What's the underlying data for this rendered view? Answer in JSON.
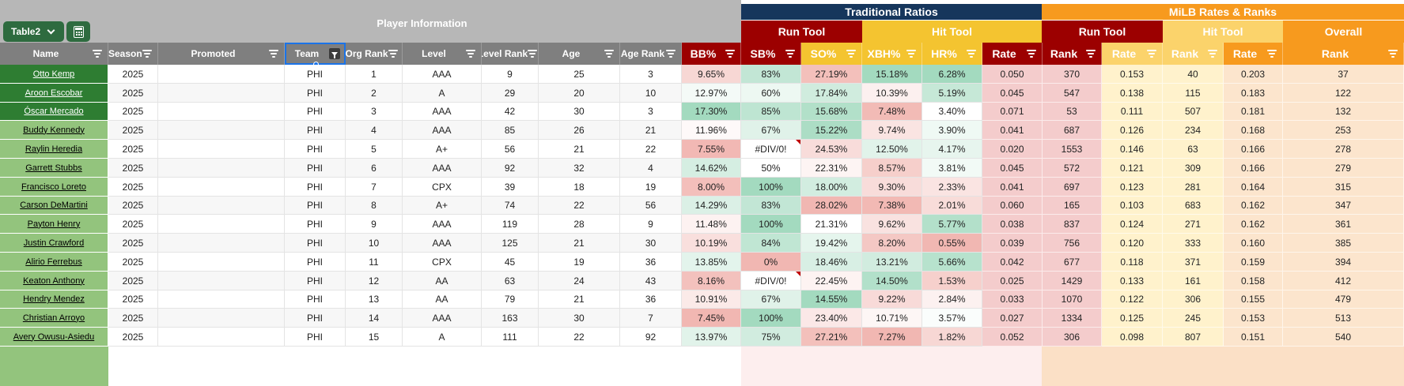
{
  "table_name": "Table2",
  "groups": {
    "player_info": "Player Information",
    "traditional": "Traditional Ratios",
    "milb": "MiLB Rates & Ranks",
    "run_tool": "Run Tool",
    "hit_tool": "Hit Tool",
    "overall": "Overall"
  },
  "colors": {
    "navy": "#16365c",
    "orange": "#f79a1e",
    "dark_red": "#9c0000",
    "gold": "#f4c430",
    "light_gold": "#fbd36b",
    "header_gray": "#7f7f7f",
    "name_dark_green": "#2e7d32",
    "name_light_green": "#93c47d"
  },
  "columns": [
    "Name",
    "Season",
    "Promoted",
    "Team",
    "Org Rank",
    "Level",
    "Level Rank",
    "Age",
    "Age Rank",
    "BB%",
    "SB%",
    "SO%",
    "XBH%",
    "HR%",
    "Rate",
    "Rank",
    "Rate",
    "Rank",
    "Rate",
    "Rank"
  ],
  "rows": [
    [
      "Otto Kemp",
      "2025",
      "",
      "PHI",
      "1",
      "AAA",
      "9",
      "25",
      "3",
      "9.65%",
      "83%",
      "27.19%",
      "15.18%",
      "6.28%",
      "0.050",
      "370",
      "0.153",
      "40",
      "0.203",
      "37"
    ],
    [
      "Aroon Escobar",
      "2025",
      "",
      "PHI",
      "2",
      "A",
      "29",
      "20",
      "10",
      "12.97%",
      "60%",
      "17.84%",
      "10.39%",
      "5.19%",
      "0.045",
      "547",
      "0.138",
      "115",
      "0.183",
      "122"
    ],
    [
      "Óscar Mercado",
      "2025",
      "",
      "PHI",
      "3",
      "AAA",
      "42",
      "30",
      "3",
      "17.30%",
      "85%",
      "15.68%",
      "7.48%",
      "3.40%",
      "0.071",
      "53",
      "0.111",
      "507",
      "0.181",
      "132"
    ],
    [
      "Buddy Kennedy",
      "2025",
      "",
      "PHI",
      "4",
      "AAA",
      "85",
      "26",
      "21",
      "11.96%",
      "67%",
      "15.22%",
      "9.74%",
      "3.90%",
      "0.041",
      "687",
      "0.126",
      "234",
      "0.168",
      "253"
    ],
    [
      "Raylin Heredia",
      "2025",
      "",
      "PHI",
      "5",
      "A+",
      "56",
      "21",
      "22",
      "7.55%",
      "#DIV/0!",
      "24.53%",
      "12.50%",
      "4.17%",
      "0.020",
      "1553",
      "0.146",
      "63",
      "0.166",
      "278"
    ],
    [
      "Garrett Stubbs",
      "2025",
      "",
      "PHI",
      "6",
      "AAA",
      "92",
      "32",
      "4",
      "14.62%",
      "50%",
      "22.31%",
      "8.57%",
      "3.81%",
      "0.045",
      "572",
      "0.121",
      "309",
      "0.166",
      "279"
    ],
    [
      "Francisco Loreto",
      "2025",
      "",
      "PHI",
      "7",
      "CPX",
      "39",
      "18",
      "19",
      "8.00%",
      "100%",
      "18.00%",
      "9.30%",
      "2.33%",
      "0.041",
      "697",
      "0.123",
      "281",
      "0.164",
      "315"
    ],
    [
      "Carson DeMartini",
      "2025",
      "",
      "PHI",
      "8",
      "A+",
      "74",
      "22",
      "56",
      "14.29%",
      "83%",
      "28.02%",
      "7.38%",
      "2.01%",
      "0.060",
      "165",
      "0.103",
      "683",
      "0.162",
      "347"
    ],
    [
      "Payton Henry",
      "2025",
      "",
      "PHI",
      "9",
      "AAA",
      "119",
      "28",
      "9",
      "11.48%",
      "100%",
      "21.31%",
      "9.62%",
      "5.77%",
      "0.038",
      "837",
      "0.124",
      "271",
      "0.162",
      "361"
    ],
    [
      "Justin Crawford",
      "2025",
      "",
      "PHI",
      "10",
      "AAA",
      "125",
      "21",
      "30",
      "10.19%",
      "84%",
      "19.42%",
      "8.20%",
      "0.55%",
      "0.039",
      "756",
      "0.120",
      "333",
      "0.160",
      "385"
    ],
    [
      "Alirio Ferrebus",
      "2025",
      "",
      "PHI",
      "11",
      "CPX",
      "45",
      "19",
      "36",
      "13.85%",
      "0%",
      "18.46%",
      "13.21%",
      "5.66%",
      "0.042",
      "677",
      "0.118",
      "371",
      "0.159",
      "394"
    ],
    [
      "Keaton Anthony",
      "2025",
      "",
      "PHI",
      "12",
      "AA",
      "63",
      "24",
      "43",
      "8.16%",
      "#DIV/0!",
      "22.45%",
      "14.50%",
      "1.53%",
      "0.025",
      "1429",
      "0.133",
      "161",
      "0.158",
      "412"
    ],
    [
      "Hendry Mendez",
      "2025",
      "",
      "PHI",
      "13",
      "AA",
      "79",
      "21",
      "36",
      "10.91%",
      "67%",
      "14.55%",
      "9.22%",
      "2.84%",
      "0.033",
      "1070",
      "0.122",
      "306",
      "0.155",
      "479"
    ],
    [
      "Christian Arroyo",
      "2025",
      "",
      "PHI",
      "14",
      "AAA",
      "163",
      "30",
      "7",
      "7.45%",
      "100%",
      "23.40%",
      "10.71%",
      "3.57%",
      "0.027",
      "1334",
      "0.125",
      "245",
      "0.153",
      "513"
    ],
    [
      "Avery Owusu-Asiedu",
      "2025",
      "",
      "PHI",
      "15",
      "A",
      "111",
      "22",
      "92",
      "13.97%",
      "75%",
      "27.21%",
      "7.27%",
      "1.82%",
      "0.052",
      "306",
      "0.098",
      "807",
      "0.151",
      "540"
    ]
  ]
}
